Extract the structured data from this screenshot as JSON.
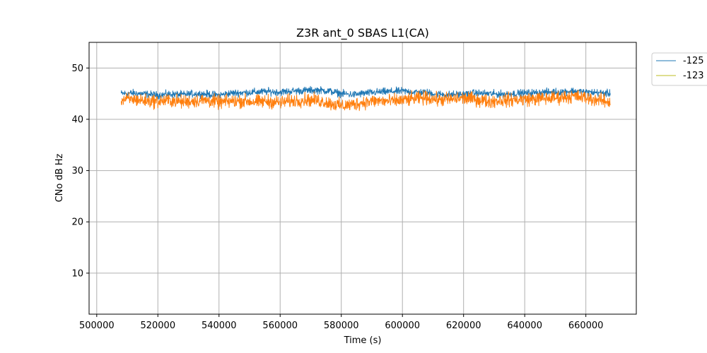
{
  "chart_data": {
    "type": "line",
    "title": "Z3R ant_0 SBAS L1(CA)",
    "xlabel": "Time (s)",
    "ylabel": "CNo dB Hz",
    "xlim": [
      497500,
      676500
    ],
    "ylim": [
      2,
      55
    ],
    "xticks": [
      500000,
      520000,
      540000,
      560000,
      580000,
      600000,
      620000,
      640000,
      660000
    ],
    "xtick_labels": [
      "500000",
      "520000",
      "540000",
      "560000",
      "580000",
      "600000",
      "620000",
      "640000",
      "660000"
    ],
    "yticks": [
      10,
      20,
      30,
      40,
      50
    ],
    "ytick_labels": [
      "10",
      "20",
      "30",
      "40",
      "50"
    ],
    "grid": true,
    "legend_position": "outside-top-right",
    "series": [
      {
        "name": "-125",
        "color": "#1f77b4",
        "x": [
          508000,
          512000,
          516000,
          520000,
          524000,
          528000,
          532000,
          536000,
          540000,
          544000,
          548000,
          552000,
          556000,
          560000,
          564000,
          568000,
          572000,
          576000,
          580000,
          584000,
          588000,
          592000,
          596000,
          600000,
          604000,
          608000,
          612000,
          616000,
          620000,
          624000,
          628000,
          632000,
          636000,
          640000,
          644000,
          648000,
          652000,
          656000,
          660000,
          664000,
          668000
        ],
        "values": [
          45.0,
          45.1,
          44.9,
          44.7,
          44.9,
          44.8,
          45.0,
          44.9,
          44.7,
          45.1,
          45.2,
          45.3,
          45.4,
          45.3,
          45.5,
          45.6,
          45.7,
          45.5,
          45.0,
          44.8,
          45.1,
          45.3,
          45.4,
          45.5,
          45.3,
          45.2,
          44.9,
          44.8,
          44.9,
          45.1,
          45.0,
          44.9,
          45.0,
          45.1,
          45.2,
          45.3,
          45.4,
          45.5,
          45.3,
          45.2,
          45.0
        ],
        "band": 0.7
      },
      {
        "name": "-123",
        "color": "#ff7f0e",
        "legend_color": "#bcbd22",
        "x": [
          508000,
          512000,
          516000,
          520000,
          524000,
          528000,
          532000,
          536000,
          540000,
          544000,
          548000,
          552000,
          556000,
          560000,
          564000,
          568000,
          572000,
          576000,
          580000,
          584000,
          588000,
          592000,
          596000,
          600000,
          604000,
          608000,
          612000,
          616000,
          620000,
          624000,
          628000,
          632000,
          636000,
          640000,
          644000,
          648000,
          652000,
          656000,
          660000,
          664000,
          668000
        ],
        "values": [
          43.8,
          43.9,
          43.6,
          43.5,
          43.7,
          43.4,
          43.6,
          43.7,
          43.3,
          43.5,
          43.6,
          43.4,
          43.5,
          43.3,
          43.6,
          43.8,
          43.7,
          43.2,
          42.6,
          42.9,
          43.4,
          43.6,
          43.5,
          43.7,
          44.0,
          44.2,
          43.8,
          43.9,
          44.1,
          43.9,
          43.5,
          43.7,
          43.8,
          43.9,
          44.0,
          44.1,
          44.3,
          44.5,
          44.2,
          43.8,
          43.3
        ],
        "band": 1.3
      }
    ]
  }
}
